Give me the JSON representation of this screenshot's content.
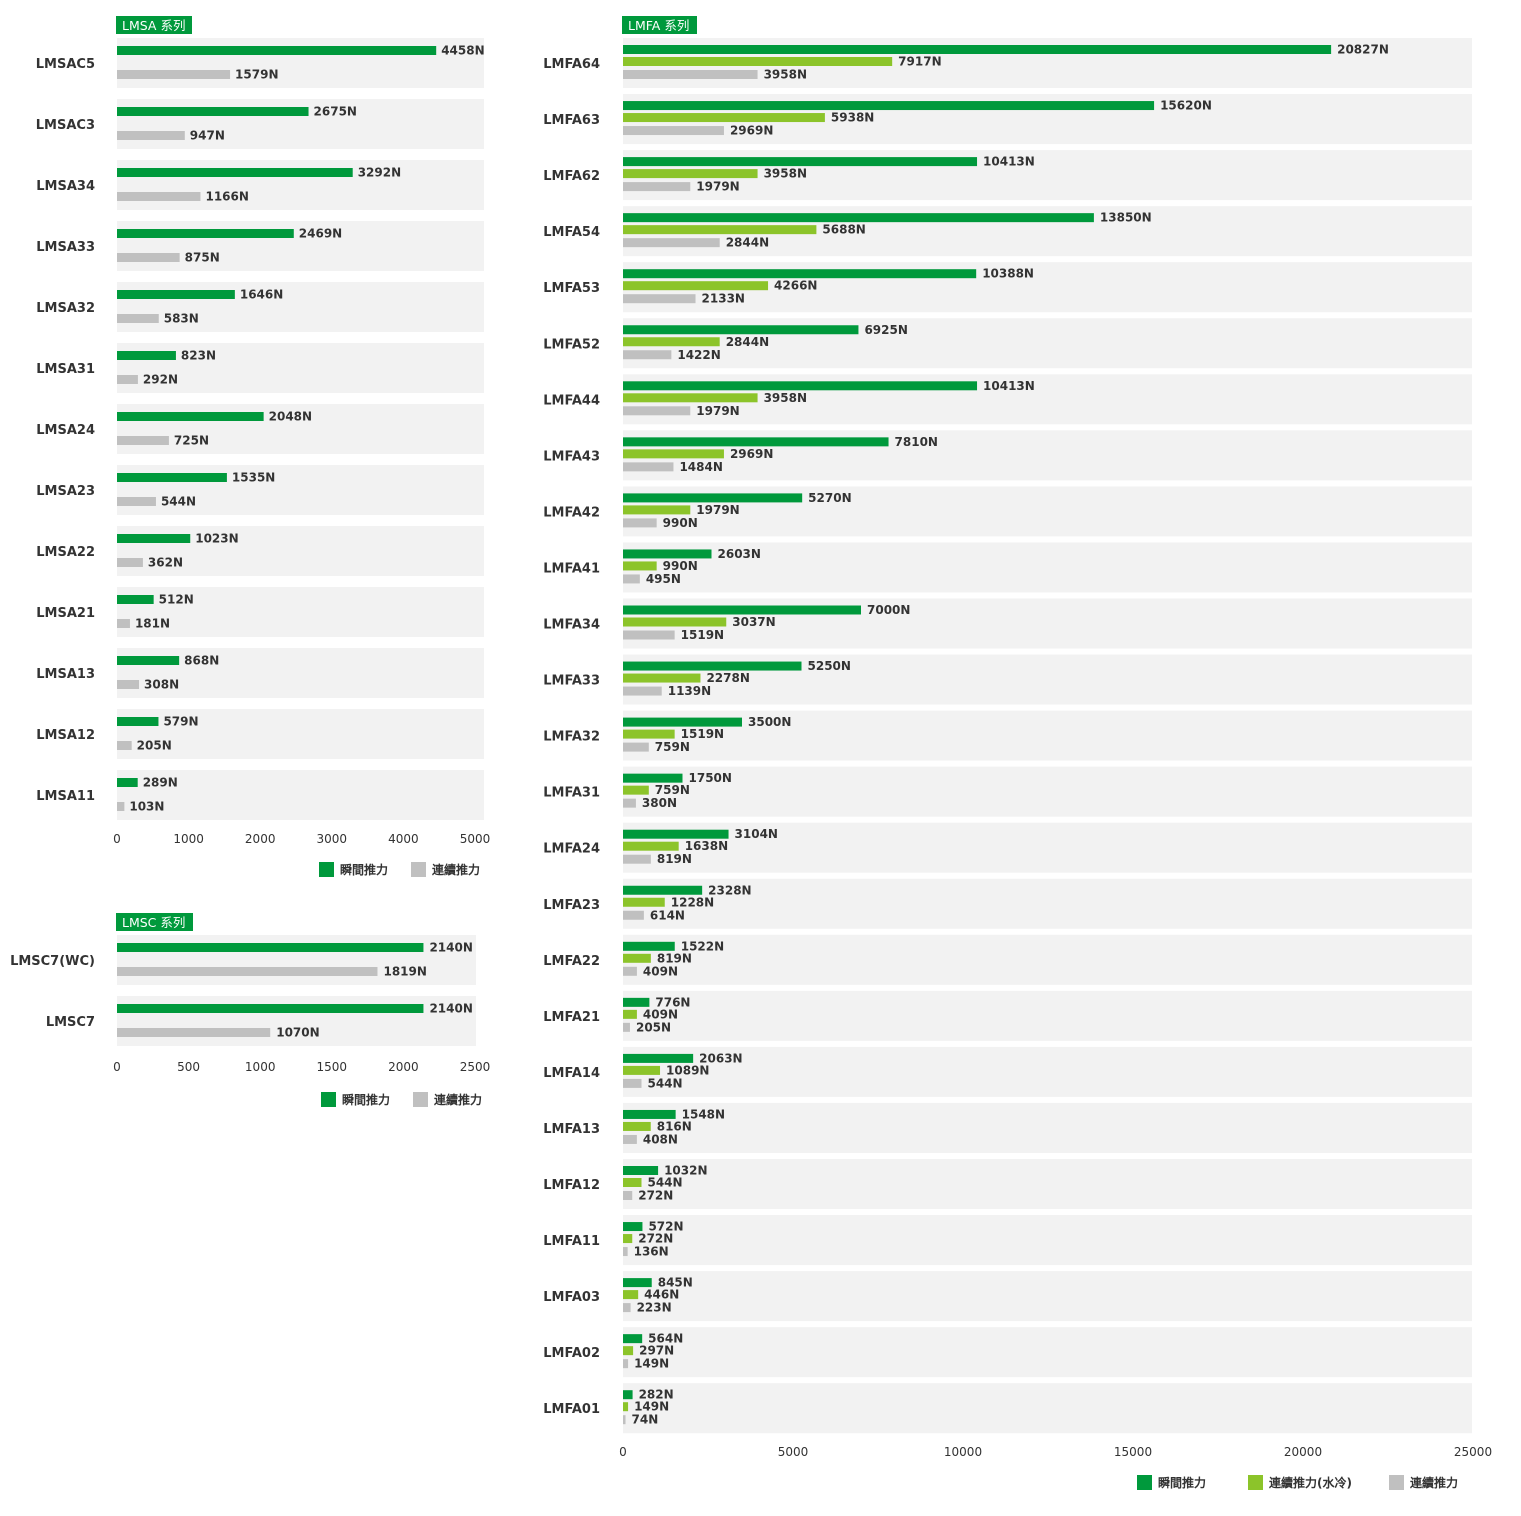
{
  "colors": {
    "instant": "#00993c",
    "water": "#8cc42a",
    "continuous": "#c0c0c0",
    "row_bg": "#f2f2f2",
    "tag_bg": "#00993c"
  },
  "chart_data": [
    {
      "type": "bar",
      "orientation": "horizontal",
      "title": "LMSA 系列",
      "categories": [
        "LMSAC5",
        "LMSAC3",
        "LMSA34",
        "LMSA33",
        "LMSA32",
        "LMSA31",
        "LMSA24",
        "LMSA23",
        "LMSA22",
        "LMSA21",
        "LMSA13",
        "LMSA12",
        "LMSA11"
      ],
      "series": [
        {
          "name": "瞬間推力",
          "color": "instant",
          "values": [
            4458,
            2675,
            3292,
            2469,
            1646,
            823,
            2048,
            1535,
            1023,
            512,
            868,
            579,
            289
          ]
        },
        {
          "name": "連續推力",
          "color": "continuous",
          "values": [
            1579,
            947,
            1166,
            875,
            583,
            292,
            725,
            544,
            362,
            181,
            308,
            205,
            103
          ]
        }
      ],
      "value_suffix": "N",
      "xlim": [
        0,
        5000
      ],
      "xticks": [
        0,
        1000,
        2000,
        3000,
        4000,
        5000
      ],
      "legend": "bottom-right"
    },
    {
      "type": "bar",
      "orientation": "horizontal",
      "title": "LMSC 系列",
      "categories": [
        "LMSC7(WC)",
        "LMSC7"
      ],
      "series": [
        {
          "name": "瞬間推力",
          "color": "instant",
          "values": [
            2140,
            2140
          ]
        },
        {
          "name": "連續推力",
          "color": "continuous",
          "values": [
            1819,
            1070
          ]
        }
      ],
      "value_suffix": "N",
      "xlim": [
        0,
        2500
      ],
      "xticks": [
        0,
        500,
        1000,
        1500,
        2000,
        2500
      ],
      "legend": "bottom-right"
    },
    {
      "type": "bar",
      "orientation": "horizontal",
      "title": "LMFA 系列",
      "categories": [
        "LMFA64",
        "LMFA63",
        "LMFA62",
        "LMFA54",
        "LMFA53",
        "LMFA52",
        "LMFA44",
        "LMFA43",
        "LMFA42",
        "LMFA41",
        "LMFA34",
        "LMFA33",
        "LMFA32",
        "LMFA31",
        "LMFA24",
        "LMFA23",
        "LMFA22",
        "LMFA21",
        "LMFA14",
        "LMFA13",
        "LMFA12",
        "LMFA11",
        "LMFA03",
        "LMFA02",
        "LMFA01"
      ],
      "series": [
        {
          "name": "瞬間推力",
          "color": "instant",
          "values": [
            20827,
            15620,
            10413,
            13850,
            10388,
            6925,
            10413,
            7810,
            5270,
            2603,
            7000,
            5250,
            3500,
            1750,
            3104,
            2328,
            1522,
            776,
            2063,
            1548,
            1032,
            572,
            845,
            564,
            282
          ]
        },
        {
          "name": "連續推力(水冷)",
          "color": "water",
          "values": [
            7917,
            5938,
            3958,
            5688,
            4266,
            2844,
            3958,
            2969,
            1979,
            990,
            3037,
            2278,
            1519,
            759,
            1638,
            1228,
            819,
            409,
            1089,
            816,
            544,
            272,
            446,
            297,
            149
          ]
        },
        {
          "name": "連續推力",
          "color": "continuous",
          "values": [
            3958,
            2969,
            1979,
            2844,
            2133,
            1422,
            1979,
            1484,
            990,
            495,
            1519,
            1139,
            759,
            380,
            819,
            614,
            409,
            205,
            544,
            408,
            272,
            136,
            223,
            149,
            74
          ]
        }
      ],
      "value_suffix": "N",
      "xlim": [
        0,
        25000
      ],
      "xticks": [
        0,
        5000,
        10000,
        15000,
        20000,
        25000
      ],
      "legend": "bottom-right"
    }
  ]
}
